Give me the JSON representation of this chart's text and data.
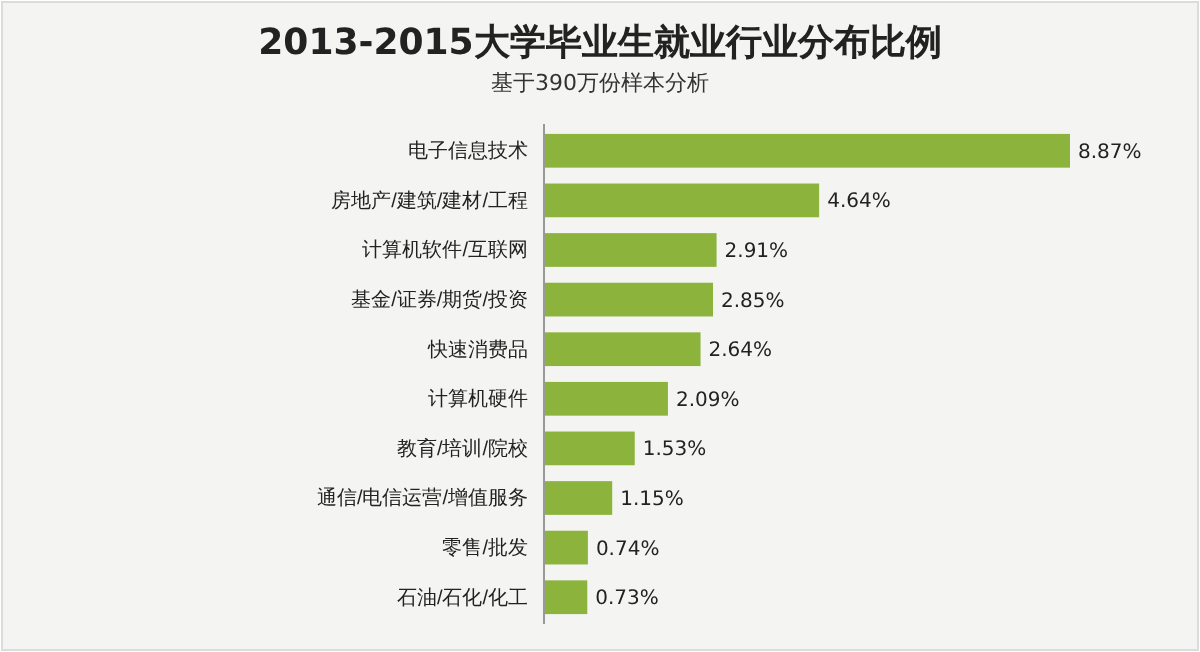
{
  "chart_data": {
    "type": "bar",
    "orientation": "horizontal",
    "title": "2013-2015大学毕业生就业行业分布比例",
    "subtitle": "基于390万份样本分析",
    "categories": [
      "电子信息技术",
      "房地产/建筑/建材/工程",
      "计算机软件/互联网",
      "基金/证券/期货/投资",
      "快速消费品",
      "计算机硬件",
      "教育/培训/院校",
      "通信/电信运营/增值服务",
      "零售/批发",
      "石油/石化/化工"
    ],
    "values": [
      8.87,
      4.64,
      2.91,
      2.85,
      2.64,
      2.09,
      1.53,
      1.15,
      0.74,
      0.73
    ],
    "value_labels": [
      "8.87%",
      "4.64%",
      "2.91%",
      "2.85%",
      "2.64%",
      "2.09%",
      "1.53%",
      "1.15%",
      "0.74%",
      "0.73%"
    ],
    "color": "#8cb43c"
  }
}
